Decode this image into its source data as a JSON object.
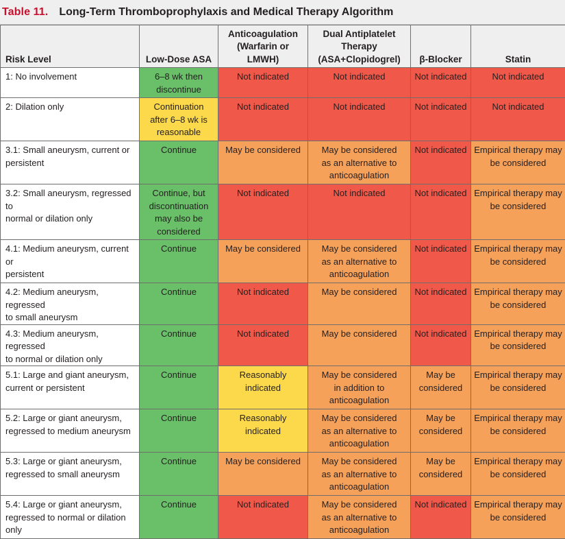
{
  "title": {
    "number": "Table 11.",
    "text": "Long-Term Thromboprophylaxis and Medical Therapy Algorithm"
  },
  "colors": {
    "green": "#6abf69",
    "yellow": "#fcd94b",
    "orange": "#f6a15a",
    "red": "#f0594a",
    "title_red": "#c8102e"
  },
  "headers": [
    "Risk Level",
    "Low-Dose ASA",
    "Anticoagulation\n(Warfarin or LMWH)",
    "Dual Antiplatelet\nTherapy\n(ASA+Clopidogrel)",
    "β-Blocker",
    "Statin"
  ],
  "rows": [
    {
      "risk": "1: No involvement",
      "cells": [
        {
          "text": "6–8 wk then\ndiscontinue",
          "color": "green"
        },
        {
          "text": "Not indicated",
          "color": "red"
        },
        {
          "text": "Not indicated",
          "color": "red"
        },
        {
          "text": "Not indicated",
          "color": "red"
        },
        {
          "text": "Not indicated",
          "color": "red"
        }
      ]
    },
    {
      "risk": "2: Dilation only",
      "cells": [
        {
          "text": "Continuation\nafter 6–8 wk is\nreasonable",
          "color": "yellow"
        },
        {
          "text": "Not indicated",
          "color": "red"
        },
        {
          "text": "Not indicated",
          "color": "red"
        },
        {
          "text": "Not indicated",
          "color": "red"
        },
        {
          "text": "Not indicated",
          "color": "red"
        }
      ]
    },
    {
      "risk": "3.1: Small aneurysm, current or\npersistent",
      "cells": [
        {
          "text": "Continue",
          "color": "green"
        },
        {
          "text": "May be considered",
          "color": "orange"
        },
        {
          "text": "May be considered\nas an alternative to\nanticoagulation",
          "color": "orange"
        },
        {
          "text": "Not indicated",
          "color": "red"
        },
        {
          "text": "Empirical therapy may\nbe considered",
          "color": "orange"
        }
      ]
    },
    {
      "risk": "3.2: Small aneurysm, regressed to\nnormal or dilation only",
      "cells": [
        {
          "text": "Continue, but\ndiscontinuation\nmay also be\nconsidered",
          "color": "green"
        },
        {
          "text": "Not indicated",
          "color": "red"
        },
        {
          "text": "Not indicated",
          "color": "red"
        },
        {
          "text": "Not indicated",
          "color": "red"
        },
        {
          "text": "Empirical therapy may\nbe considered",
          "color": "orange"
        }
      ]
    },
    {
      "risk": "4.1: Medium aneurysm, current or\npersistent",
      "cells": [
        {
          "text": "Continue",
          "color": "green"
        },
        {
          "text": "May be considered",
          "color": "orange"
        },
        {
          "text": "May be considered\nas an alternative to\nanticoagulation",
          "color": "orange"
        },
        {
          "text": "Not indicated",
          "color": "red"
        },
        {
          "text": "Empirical therapy may\nbe considered",
          "color": "orange"
        }
      ]
    },
    {
      "risk": "4.2: Medium aneurysm, regressed\nto small aneurysm",
      "cells": [
        {
          "text": "Continue",
          "color": "green"
        },
        {
          "text": "Not indicated",
          "color": "red"
        },
        {
          "text": "May be considered",
          "color": "orange"
        },
        {
          "text": "Not indicated",
          "color": "red"
        },
        {
          "text": "Empirical therapy may\nbe considered",
          "color": "orange"
        }
      ]
    },
    {
      "risk": "4.3: Medium aneurysm, regressed\nto normal or dilation only",
      "cells": [
        {
          "text": "Continue",
          "color": "green"
        },
        {
          "text": "Not indicated",
          "color": "red"
        },
        {
          "text": "May be considered",
          "color": "orange"
        },
        {
          "text": "Not indicated",
          "color": "red"
        },
        {
          "text": "Empirical therapy may\nbe considered",
          "color": "orange"
        }
      ]
    },
    {
      "risk": "5.1: Large and giant aneurysm,\ncurrent or persistent",
      "cells": [
        {
          "text": "Continue",
          "color": "green"
        },
        {
          "text": "Reasonably indicated",
          "color": "yellow"
        },
        {
          "text": "May be considered\nin addition to\nanticoagulation",
          "color": "orange"
        },
        {
          "text": "May be\nconsidered",
          "color": "orange"
        },
        {
          "text": "Empirical therapy may\nbe considered",
          "color": "orange"
        }
      ]
    },
    {
      "risk": "5.2: Large or giant aneurysm,\nregressed to medium aneurysm",
      "cells": [
        {
          "text": "Continue",
          "color": "green"
        },
        {
          "text": "Reasonably indicated",
          "color": "yellow"
        },
        {
          "text": "May be considered\nas an alternative to\nanticoagulation",
          "color": "orange"
        },
        {
          "text": "May be\nconsidered",
          "color": "orange"
        },
        {
          "text": "Empirical therapy may\nbe considered",
          "color": "orange"
        }
      ]
    },
    {
      "risk": "5.3: Large or giant aneurysm,\nregressed to small aneurysm",
      "cells": [
        {
          "text": "Continue",
          "color": "green"
        },
        {
          "text": "May be considered",
          "color": "orange"
        },
        {
          "text": "May be considered\nas an alternative to\nanticoagulation",
          "color": "orange"
        },
        {
          "text": "May be\nconsidered",
          "color": "orange"
        },
        {
          "text": "Empirical therapy may\nbe considered",
          "color": "orange"
        }
      ]
    },
    {
      "risk": "5.4: Large or giant aneurysm,\nregressed to normal or dilation\nonly",
      "cells": [
        {
          "text": "Continue",
          "color": "green"
        },
        {
          "text": "Not indicated",
          "color": "red"
        },
        {
          "text": "May be considered\nas an alternative to\nanticoagulation",
          "color": "orange"
        },
        {
          "text": "Not indicated",
          "color": "red"
        },
        {
          "text": "Empirical therapy may\nbe considered",
          "color": "orange"
        }
      ]
    }
  ]
}
